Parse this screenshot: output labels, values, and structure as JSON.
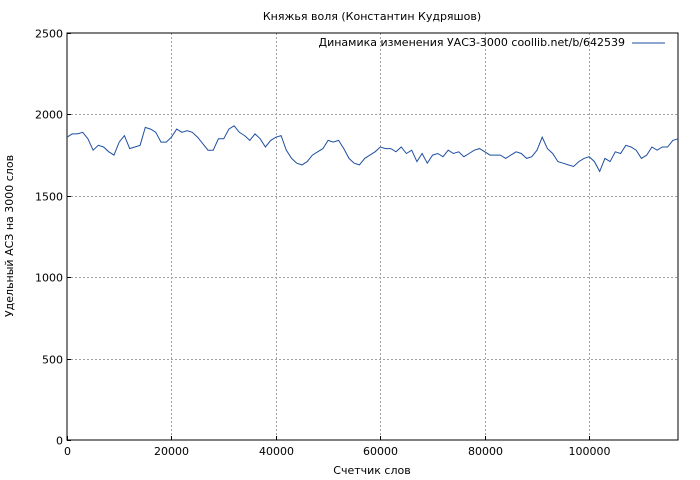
{
  "chart_data": {
    "type": "line",
    "title": "Княжья воля (Константин Кудряшов)",
    "xlabel": "Счетчик слов",
    "ylabel": "Удельный АСЗ на 3000 слов",
    "xlim": [
      0,
      117000
    ],
    "ylim": [
      0,
      2500
    ],
    "xticks": [
      0,
      20000,
      40000,
      60000,
      80000,
      100000
    ],
    "yticks": [
      0,
      500,
      1000,
      1500,
      2000,
      2500
    ],
    "grid": true,
    "legend_position": "top-right",
    "colors": {
      "series": "#1f4fa0",
      "grid": "#a0a0a0",
      "axis": "#000000"
    },
    "series": [
      {
        "name": "Динамика изменения УАСЗ-3000 coollib.net/b/642539",
        "x": [
          0,
          1000,
          2000,
          3000,
          4000,
          5000,
          6000,
          7000,
          8000,
          9000,
          10000,
          11000,
          12000,
          13000,
          14000,
          15000,
          16000,
          17000,
          18000,
          19000,
          20000,
          21000,
          22000,
          23000,
          24000,
          25000,
          26000,
          27000,
          28000,
          29000,
          30000,
          31000,
          32000,
          33000,
          34000,
          35000,
          36000,
          37000,
          38000,
          39000,
          40000,
          41000,
          42000,
          43000,
          44000,
          45000,
          46000,
          47000,
          48000,
          49000,
          50000,
          51000,
          52000,
          53000,
          54000,
          55000,
          56000,
          57000,
          58000,
          59000,
          60000,
          61000,
          62000,
          63000,
          64000,
          65000,
          66000,
          67000,
          68000,
          69000,
          70000,
          71000,
          72000,
          73000,
          74000,
          75000,
          76000,
          77000,
          78000,
          79000,
          80000,
          81000,
          82000,
          83000,
          84000,
          85000,
          86000,
          87000,
          88000,
          89000,
          90000,
          91000,
          92000,
          93000,
          94000,
          95000,
          96000,
          97000,
          98000,
          99000,
          100000,
          101000,
          102000,
          103000,
          104000,
          105000,
          106000,
          107000,
          108000,
          109000,
          110000,
          111000,
          112000,
          113000,
          114000,
          115000,
          116000,
          117000
        ],
        "values": [
          1860,
          1880,
          1880,
          1890,
          1850,
          1780,
          1810,
          1800,
          1770,
          1750,
          1830,
          1870,
          1790,
          1800,
          1810,
          1920,
          1910,
          1890,
          1830,
          1830,
          1860,
          1910,
          1890,
          1900,
          1890,
          1860,
          1820,
          1780,
          1780,
          1850,
          1850,
          1910,
          1930,
          1890,
          1870,
          1840,
          1880,
          1850,
          1800,
          1840,
          1860,
          1870,
          1780,
          1730,
          1700,
          1690,
          1710,
          1750,
          1770,
          1790,
          1840,
          1830,
          1840,
          1790,
          1730,
          1700,
          1690,
          1730,
          1750,
          1770,
          1800,
          1790,
          1790,
          1770,
          1800,
          1760,
          1780,
          1710,
          1760,
          1700,
          1750,
          1760,
          1740,
          1780,
          1760,
          1770,
          1740,
          1760,
          1780,
          1790,
          1770,
          1750,
          1750,
          1750,
          1730,
          1750,
          1770,
          1760,
          1730,
          1740,
          1780,
          1860,
          1790,
          1760,
          1710,
          1700,
          1690,
          1680,
          1710,
          1730,
          1740,
          1710,
          1650,
          1730,
          1710,
          1770,
          1760,
          1810,
          1800,
          1780,
          1730,
          1750,
          1800,
          1780,
          1800,
          1800,
          1840,
          1850
        ]
      }
    ]
  }
}
